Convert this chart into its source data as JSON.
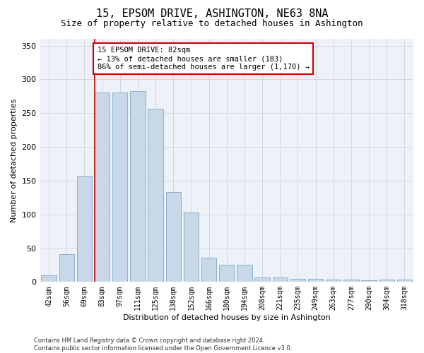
{
  "title": "15, EPSOM DRIVE, ASHINGTON, NE63 8NA",
  "subtitle": "Size of property relative to detached houses in Ashington",
  "xlabel": "Distribution of detached houses by size in Ashington",
  "ylabel": "Number of detached properties",
  "bar_labels": [
    "42sqm",
    "56sqm",
    "69sqm",
    "83sqm",
    "97sqm",
    "111sqm",
    "125sqm",
    "138sqm",
    "152sqm",
    "166sqm",
    "180sqm",
    "194sqm",
    "208sqm",
    "221sqm",
    "235sqm",
    "249sqm",
    "263sqm",
    "277sqm",
    "290sqm",
    "304sqm",
    "318sqm"
  ],
  "bar_values": [
    10,
    41,
    157,
    281,
    281,
    283,
    257,
    133,
    103,
    36,
    25,
    25,
    7,
    7,
    5,
    5,
    4,
    4,
    2,
    4,
    3
  ],
  "bar_color": "#c8d8e8",
  "bar_edge_color": "#7aaac8",
  "vline_color": "#cc0000",
  "annotation_text": "15 EPSOM DRIVE: 82sqm\n← 13% of detached houses are smaller (183)\n86% of semi-detached houses are larger (1,170) →",
  "annotation_box_color": "#ffffff",
  "annotation_box_edge": "#cc0000",
  "ylim": [
    0,
    360
  ],
  "yticks": [
    0,
    50,
    100,
    150,
    200,
    250,
    300,
    350
  ],
  "grid_color": "#d0d8e8",
  "bg_color": "#eef2f8",
  "footer": "Contains HM Land Registry data © Crown copyright and database right 2024.\nContains public sector information licensed under the Open Government Licence v3.0.",
  "title_fontsize": 11,
  "subtitle_fontsize": 9,
  "ylabel_fontsize": 8,
  "xlabel_fontsize": 8,
  "tick_fontsize": 7,
  "annotation_fontsize": 7.5,
  "footer_fontsize": 6
}
